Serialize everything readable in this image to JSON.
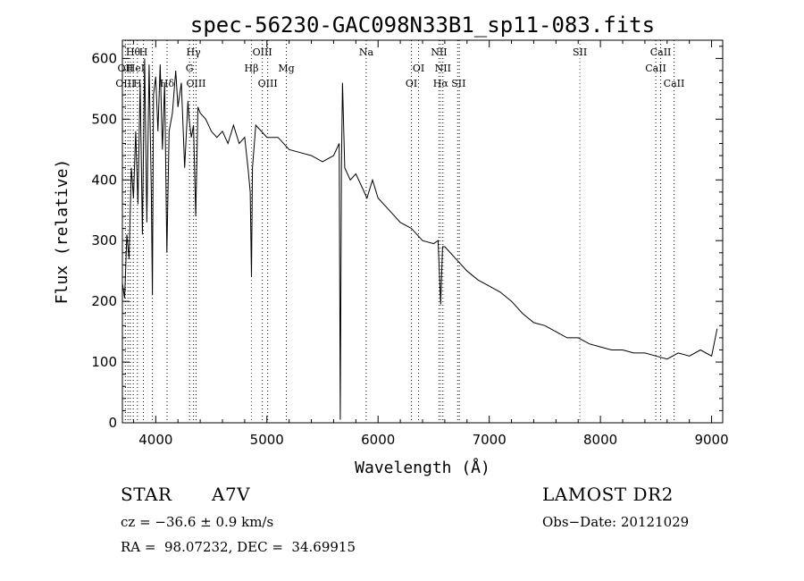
{
  "chart_data": {
    "type": "line",
    "title": "spec-56230-GAC098N33B1_sp11-083.fits",
    "xlabel": "Wavelength (Å)",
    "ylabel": "Flux (relative)",
    "xlim": [
      3700,
      9100
    ],
    "ylim": [
      0,
      630
    ],
    "xticks": [
      4000,
      5000,
      6000,
      7000,
      8000,
      9000
    ],
    "yticks": [
      0,
      100,
      200,
      300,
      400,
      500,
      600
    ],
    "grid": false,
    "series": [
      {
        "x": [
          3700,
          3720,
          3740,
          3760,
          3780,
          3800,
          3820,
          3840,
          3860,
          3880,
          3900,
          3920,
          3940,
          3960,
          3970,
          3980,
          4000,
          4020,
          4040,
          4060,
          4080,
          4100,
          4120,
          4150,
          4180,
          4200,
          4230,
          4260,
          4290,
          4300,
          4320,
          4340,
          4360,
          4380,
          4400,
          4450,
          4500,
          4550,
          4600,
          4650,
          4700,
          4750,
          4800,
          4830,
          4850,
          4861,
          4870,
          4900,
          4950,
          5000,
          5100,
          5200,
          5300,
          5400,
          5500,
          5600,
          5650,
          5660,
          5670,
          5680,
          5700,
          5750,
          5800,
          5850,
          5900,
          5950,
          6000,
          6100,
          6200,
          6300,
          6400,
          6500,
          6540,
          6563,
          6580,
          6600,
          6700,
          6800,
          6900,
          7000,
          7100,
          7200,
          7300,
          7400,
          7500,
          7600,
          7700,
          7800,
          7900,
          8000,
          8100,
          8200,
          8300,
          8400,
          8500,
          8600,
          8700,
          8800,
          8900,
          9000,
          9050
        ],
        "y": [
          230,
          205,
          310,
          270,
          420,
          370,
          480,
          360,
          560,
          310,
          600,
          330,
          590,
          380,
          210,
          540,
          570,
          480,
          590,
          450,
          560,
          280,
          480,
          510,
          580,
          520,
          560,
          420,
          530,
          500,
          470,
          490,
          340,
          520,
          510,
          500,
          480,
          470,
          480,
          460,
          490,
          460,
          470,
          420,
          380,
          240,
          420,
          490,
          480,
          470,
          470,
          450,
          445,
          440,
          430,
          440,
          460,
          5,
          420,
          560,
          420,
          400,
          410,
          390,
          370,
          400,
          370,
          350,
          330,
          320,
          300,
          295,
          300,
          195,
          290,
          290,
          270,
          250,
          235,
          225,
          215,
          200,
          180,
          165,
          160,
          150,
          140,
          140,
          130,
          125,
          120,
          120,
          115,
          115,
          110,
          105,
          115,
          110,
          120,
          110,
          155
        ]
      }
    ],
    "line_labels": [
      {
        "text": "Hθ",
        "x": 3797,
        "row": 1,
        "color": "#000000"
      },
      {
        "text": "H",
        "x": 3889,
        "row": 1,
        "color": "#000000"
      },
      {
        "text": "OII",
        "x": 3727,
        "row": 2,
        "color": "#000000"
      },
      {
        "text": "HeI",
        "x": 3820,
        "row": 2,
        "color": "#000000"
      },
      {
        "text": "OIII",
        "x": 3727,
        "row": 3,
        "color": "#000000"
      },
      {
        "text": "H",
        "x": 3835,
        "row": 3,
        "color": "#000000"
      },
      {
        "text": "Hδ",
        "x": 4102,
        "row": 3,
        "color": "#000000"
      },
      {
        "text": "Hγ",
        "x": 4340,
        "row": 1,
        "color": "#000000"
      },
      {
        "text": "G",
        "x": 4304,
        "row": 2,
        "color": "#000000"
      },
      {
        "text": "OIII",
        "x": 4363,
        "row": 3,
        "color": "#000000"
      },
      {
        "text": "OIII",
        "x": 4959,
        "row": 1,
        "color": "#000000"
      },
      {
        "text": "Hβ",
        "x": 4861,
        "row": 2,
        "color": "#000000"
      },
      {
        "text": "Mg",
        "x": 5175,
        "row": 2,
        "color": "#000000"
      },
      {
        "text": "OIII",
        "x": 5007,
        "row": 3,
        "color": "#000000"
      },
      {
        "text": "Na",
        "x": 5893,
        "row": 1,
        "color": "#000000"
      },
      {
        "text": "NII",
        "x": 6548,
        "row": 1,
        "color": "#000000"
      },
      {
        "text": "OI",
        "x": 6364,
        "row": 2,
        "color": "#000000"
      },
      {
        "text": "NII",
        "x": 6583,
        "row": 2,
        "color": "#000000"
      },
      {
        "text": "OI",
        "x": 6300,
        "row": 3,
        "color": "#000000"
      },
      {
        "text": "Hα",
        "x": 6563,
        "row": 3,
        "color": "#000000"
      },
      {
        "text": "SII",
        "x": 6724,
        "row": 3,
        "color": "#000000"
      },
      {
        "text": "SII",
        "x": 7815,
        "row": 1,
        "color": "#000000"
      },
      {
        "text": "CaII",
        "x": 8542,
        "row": 1,
        "color": "#000000"
      },
      {
        "text": "CaII",
        "x": 8498,
        "row": 2,
        "color": "#000000"
      },
      {
        "text": "CaII",
        "x": 8662,
        "row": 3,
        "color": "#000000"
      }
    ],
    "marker_lines": [
      {
        "x": 3727,
        "color": "#000000"
      },
      {
        "x": 3750,
        "color": "#000000"
      },
      {
        "x": 3771,
        "color": "#000000"
      },
      {
        "x": 3798,
        "color": "#000000"
      },
      {
        "x": 3835,
        "color": "#000000"
      },
      {
        "x": 3889,
        "color": "#000000"
      },
      {
        "x": 3970,
        "color": "#000000"
      },
      {
        "x": 4102,
        "color": "#000000"
      },
      {
        "x": 4304,
        "color": "#000000"
      },
      {
        "x": 4340,
        "color": "#000000"
      },
      {
        "x": 4363,
        "color": "#000000"
      },
      {
        "x": 4861,
        "color": "#cc0000"
      },
      {
        "x": 4959,
        "color": "#000000"
      },
      {
        "x": 5007,
        "color": "#000000"
      },
      {
        "x": 5175,
        "color": "#000000"
      },
      {
        "x": 5893,
        "color": "#000000"
      },
      {
        "x": 6300,
        "color": "#000000"
      },
      {
        "x": 6364,
        "color": "#000000"
      },
      {
        "x": 6548,
        "color": "#000000"
      },
      {
        "x": 6563,
        "color": "#cc0000"
      },
      {
        "x": 6583,
        "color": "#000000"
      },
      {
        "x": 6716,
        "color": "#000000"
      },
      {
        "x": 6731,
        "color": "#000000"
      },
      {
        "x": 7815,
        "color": "#cc0000"
      },
      {
        "x": 8498,
        "color": "#000000"
      },
      {
        "x": 8542,
        "color": "#000000"
      },
      {
        "x": 8662,
        "color": "#000000"
      }
    ]
  },
  "info": {
    "object_class": "STAR",
    "subclass": "A7V",
    "survey": "LAMOST DR2",
    "cz": "cz = −36.6 ± 0.9 km/s",
    "obs_date": "Obs−Date: 20121029",
    "coords": "RA =  98.07232, DEC =  34.69915"
  }
}
